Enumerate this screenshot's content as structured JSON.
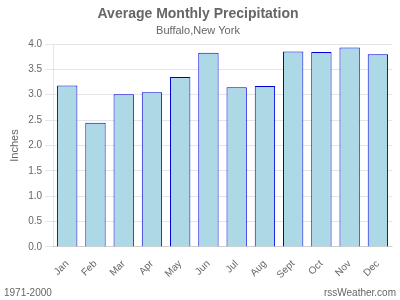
{
  "chart_data": {
    "type": "bar",
    "title": "Average Monthly Precipitation",
    "subtitle": "Buffalo,New York",
    "ylabel": "Inches",
    "categories": [
      "Jan",
      "Feb",
      "Mar",
      "Apr",
      "May",
      "Jun",
      "Jul",
      "Aug",
      "Sept",
      "Oct",
      "Nov",
      "Dec"
    ],
    "values": [
      3.18,
      2.45,
      3.01,
      3.05,
      3.35,
      3.83,
      3.15,
      3.17,
      3.85,
      3.84,
      3.93,
      3.8
    ],
    "color": "#add8e6",
    "ylim": [
      0,
      4.0
    ],
    "yticks": [
      {
        "value": 0,
        "label": "0.0"
      },
      0.5,
      {
        "value": 1,
        "label": "1.0"
      },
      1.5,
      {
        "value": 2,
        "label": "2.0"
      },
      2.5,
      {
        "value": 3,
        "label": "3.0"
      },
      3.5,
      {
        "value": 4,
        "label": "4.0"
      }
    ],
    "grid": true,
    "annotations": [
      "1971-2000",
      "rssWeather.com"
    ]
  }
}
